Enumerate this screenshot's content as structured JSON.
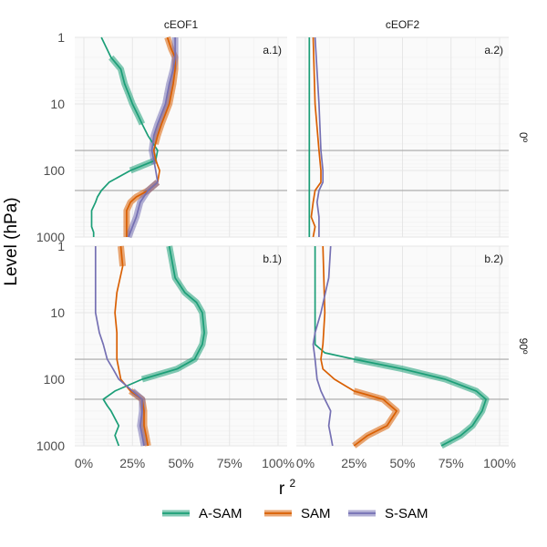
{
  "chart_data": {
    "type": "line",
    "xlabel": "r",
    "xlabel_superscript": "2",
    "ylabel": "Level (hPa)",
    "x_ticks": [
      "0%",
      "25%",
      "50%",
      "75%",
      "100%"
    ],
    "y_ticks": [
      "1",
      "10",
      "100",
      "1000"
    ],
    "y_scale": "log-reversed",
    "xlim": [
      0,
      1
    ],
    "ylim": [
      1000,
      1
    ],
    "grid": true,
    "legend_position": "bottom",
    "columns": [
      "cEOF1",
      "cEOF2"
    ],
    "rows": [
      "0",
      "90"
    ],
    "row_suffix": "º",
    "reference_levels_hPa": [
      50,
      200
    ],
    "series": [
      {
        "key": "asam",
        "name": "A-SAM",
        "color": "#1b9e77"
      },
      {
        "key": "sam",
        "name": "SAM",
        "color": "#d95f02"
      },
      {
        "key": "ssam",
        "name": "S-SAM",
        "color": "#7570b3"
      }
    ],
    "panels": [
      {
        "tag": "a.1)",
        "column": "cEOF1",
        "row": "0",
        "lines": {
          "asam": {
            "levels": [
              1,
              2,
              3,
              5,
              7,
              10,
              15,
              20,
              30,
              50,
              70,
              100,
              150,
              200,
              250,
              300,
              400,
              500,
              700,
              850,
              1000
            ],
            "r2": [
              0.09,
              0.14,
              0.19,
              0.21,
              0.23,
              0.25,
              0.28,
              0.3,
              0.33,
              0.38,
              0.37,
              0.24,
              0.13,
              0.09,
              0.07,
              0.06,
              0.04,
              0.04,
              0.04,
              0.05,
              0.05
            ]
          },
          "sam": {
            "levels": [
              1,
              1.5,
              2,
              3,
              5,
              7,
              10,
              20,
              30,
              50,
              70,
              100,
              150,
              200,
              250,
              300,
              400,
              500,
              700,
              1000
            ],
            "r2": [
              0.43,
              0.45,
              0.47,
              0.47,
              0.46,
              0.45,
              0.44,
              0.4,
              0.38,
              0.36,
              0.37,
              0.39,
              0.38,
              0.33,
              0.27,
              0.24,
              0.22,
              0.22,
              0.22,
              0.22
            ]
          },
          "ssam": {
            "levels": [
              1,
              2,
              3,
              5,
              7,
              10,
              20,
              30,
              50,
              70,
              100,
              150,
              200,
              300,
              500,
              700,
              1000
            ],
            "r2": [
              0.47,
              0.47,
              0.46,
              0.44,
              0.43,
              0.42,
              0.38,
              0.36,
              0.35,
              0.36,
              0.37,
              0.38,
              0.33,
              0.29,
              0.27,
              0.25,
              0.23
            ]
          }
        },
        "highlight": {
          "asam": [
            [
              2,
              20
            ],
            [
              70,
              100
            ]
          ],
          "sam": [
            [
              1,
              40
            ],
            [
              150,
              1000
            ]
          ],
          "ssam": [
            [
              1,
              80
            ],
            [
              150,
              1000
            ]
          ]
        }
      },
      {
        "tag": "a.2)",
        "column": "cEOF2",
        "row": "0",
        "lines": {
          "asam": {
            "levels": [
              1,
              10,
              50,
              100,
              200,
              300,
              500,
              700,
              1000
            ],
            "r2": [
              0.02,
              0.02,
              0.02,
              0.02,
              0.02,
              0.02,
              0.02,
              0.02,
              0.02
            ]
          },
          "sam": {
            "levels": [
              1,
              10,
              50,
              100,
              150,
              200,
              300,
              500,
              700,
              1000
            ],
            "r2": [
              0.04,
              0.05,
              0.07,
              0.08,
              0.08,
              0.05,
              0.04,
              0.03,
              0.05,
              0.04
            ]
          },
          "ssam": {
            "levels": [
              1,
              10,
              50,
              100,
              150,
              200,
              300,
              500,
              1000
            ],
            "r2": [
              0.05,
              0.07,
              0.08,
              0.09,
              0.09,
              0.07,
              0.06,
              0.07,
              0.07
            ]
          }
        },
        "highlight": {}
      },
      {
        "tag": "b.1)",
        "column": "cEOF1",
        "row": "90",
        "lines": {
          "asam": {
            "levels": [
              1,
              3,
              5,
              7,
              10,
              20,
              30,
              50,
              70,
              100,
              150,
              200,
              250,
              300,
              500,
              700,
              1000
            ],
            "r2": [
              0.44,
              0.47,
              0.52,
              0.58,
              0.61,
              0.62,
              0.61,
              0.57,
              0.48,
              0.3,
              0.16,
              0.1,
              0.12,
              0.14,
              0.18,
              0.16,
              0.18
            ]
          },
          "sam": {
            "levels": [
              1,
              2,
              5,
              10,
              20,
              50,
              100,
              150,
              200,
              300,
              500,
              700,
              1000
            ],
            "r2": [
              0.19,
              0.2,
              0.17,
              0.16,
              0.17,
              0.17,
              0.19,
              0.24,
              0.3,
              0.31,
              0.31,
              0.32,
              0.33
            ]
          },
          "ssam": {
            "levels": [
              1,
              3,
              5,
              10,
              20,
              30,
              50,
              70,
              100,
              150,
              200,
              300,
              500,
              700,
              1000
            ],
            "r2": [
              0.06,
              0.06,
              0.06,
              0.06,
              0.08,
              0.1,
              0.12,
              0.15,
              0.18,
              0.25,
              0.3,
              0.3,
              0.29,
              0.3,
              0.31
            ]
          }
        },
        "highlight": {
          "asam": [
            [
              1,
              100
            ]
          ],
          "sam": [
            [
              1,
              2
            ],
            [
              150,
              1000
            ]
          ],
          "ssam": [
            [
              150,
              1000
            ]
          ]
        }
      },
      {
        "tag": "b.2)",
        "column": "cEOF2",
        "row": "90",
        "lines": {
          "asam": {
            "levels": [
              1,
              10,
              30,
              40,
              50,
              70,
              100,
              150,
              200,
              300,
              500,
              700,
              1000
            ],
            "r2": [
              0.05,
              0.05,
              0.05,
              0.1,
              0.25,
              0.5,
              0.72,
              0.88,
              0.93,
              0.91,
              0.86,
              0.8,
              0.7
            ]
          },
          "sam": {
            "levels": [
              1,
              10,
              30,
              50,
              70,
              100,
              150,
              200,
              300,
              500,
              700,
              1000
            ],
            "r2": [
              0.09,
              0.1,
              0.09,
              0.08,
              0.09,
              0.15,
              0.25,
              0.4,
              0.47,
              0.42,
              0.32,
              0.25
            ]
          },
          "ssam": {
            "levels": [
              1,
              3,
              10,
              20,
              30,
              50,
              100,
              150,
              200,
              300,
              500,
              700,
              1000
            ],
            "r2": [
              0.13,
              0.12,
              0.08,
              0.05,
              0.04,
              0.05,
              0.06,
              0.08,
              0.1,
              0.13,
              0.12,
              0.13,
              0.14
            ]
          }
        },
        "highlight": {
          "asam": [
            [
              50,
              1000
            ]
          ],
          "sam": [
            [
              150,
              1000
            ]
          ]
        }
      }
    ]
  }
}
